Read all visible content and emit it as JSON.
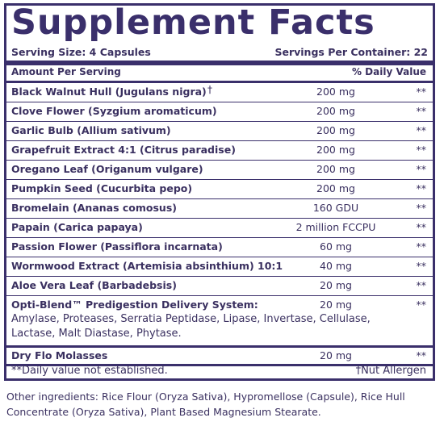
{
  "title": "Supplement Facts",
  "serving_size": "Serving Size: 4 Capsules",
  "servings_per_container": "Servings Per Container: 22",
  "header": {
    "amount": "Amount Per Serving",
    "daily_value": "% Daily Value"
  },
  "rows": [
    {
      "name": "Black Walnut Hull (Jugulans nigra)",
      "mark": "†",
      "amount": "200 mg",
      "dv": "**"
    },
    {
      "name": "Clove Flower (Syzgium aromaticum)",
      "amount": "200 mg",
      "dv": "**"
    },
    {
      "name": "Garlic Bulb (Allium sativum)",
      "amount": "200 mg",
      "dv": "**"
    },
    {
      "name": "Grapefruit Extract 4:1 (Citrus paradise)",
      "amount": "200 mg",
      "dv": "**"
    },
    {
      "name": "Oregano Leaf (Origanum vulgare)",
      "amount": "200 mg",
      "dv": "**"
    },
    {
      "name": "Pumpkin Seed (Cucurbita pepo)",
      "amount": "200 mg",
      "dv": "**"
    },
    {
      "name": "Bromelain (Ananas comosus)",
      "amount": "160 GDU",
      "dv": "**"
    },
    {
      "name": "Papain (Carica papaya)",
      "amount": "2 million FCCPU",
      "dv": "**"
    },
    {
      "name": "Passion Flower (Passiflora incarnata)",
      "amount": "60 mg",
      "dv": "**"
    },
    {
      "name": "Wormwood Extract (Artemisia absinthium) 10:1",
      "amount": "40 mg",
      "dv": "**"
    },
    {
      "name": "Aloe Vera Leaf (Barbadebsis)",
      "amount": "20 mg",
      "dv": "**"
    }
  ],
  "blend": {
    "name": "Opti-Blend™ Predigestion Delivery System:",
    "amount": "20 mg",
    "dv": "**",
    "description": "Amylase, Proteases, Serratia Peptidase, Lipase, Invertase, Cellulase, Lactase, Malt Diastase, Phytase."
  },
  "last_row": {
    "name": "Dry Flo Molasses",
    "amount": "20 mg",
    "dv": "**"
  },
  "footnote_left": "**Daily value not established.",
  "footnote_right": "†Nut Allergen",
  "other_ingredients": "Other ingredients: Rice Flour (Oryza Sativa), Hypromellose (Capsule), Rice Hull Concentrate (Oryza Sativa), Plant Based Magnesium Stearate."
}
